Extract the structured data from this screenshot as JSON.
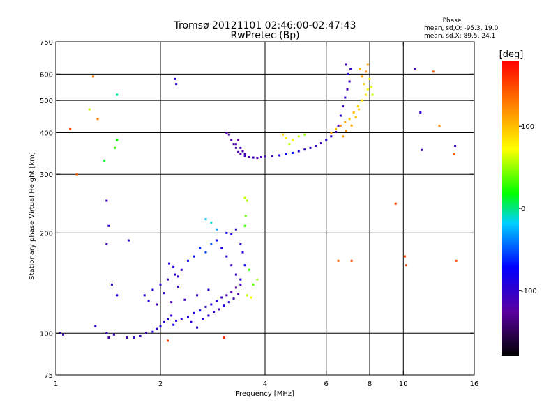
{
  "chart_data": {
    "type": "scatter",
    "title": "Tromsø 20121101 02:46:00-02:47:43",
    "subtitle": "RwPretec (Bp)",
    "xlabel": "Frequency [MHz]",
    "ylabel": "Stationary phase Virtual Height [km]",
    "x_scale": "log",
    "y_scale": "log",
    "xlim": [
      1,
      16
    ],
    "ylim": [
      75,
      750
    ],
    "x_ticks": [
      1,
      2,
      4,
      6,
      8,
      10,
      16
    ],
    "y_ticks": [
      75,
      100,
      200,
      300,
      400,
      500,
      600,
      750
    ],
    "x_gridlines": [
      2,
      4,
      6,
      8,
      10
    ],
    "y_gridlines": [
      100,
      200,
      300,
      400,
      500,
      600
    ],
    "grid": true,
    "stats": {
      "header": "Phase",
      "line_o": "mean, sd,O: -95.3, 19.0",
      "line_x": "mean, sd,X: 89.5, 24.1"
    },
    "colorbar": {
      "label": "[deg]",
      "range": [
        -180,
        180
      ],
      "ticks": [
        100,
        0,
        -100
      ],
      "tick_labels": [
        "100",
        "0",
        "-100"
      ]
    },
    "series": [
      {
        "points": [
          [
            1.03,
            100,
            -100
          ],
          [
            1.05,
            99,
            -105
          ],
          [
            1.3,
            105,
            -100
          ],
          [
            1.4,
            100,
            -110
          ],
          [
            1.42,
            97,
            -115
          ],
          [
            1.47,
            99,
            -105
          ],
          [
            1.6,
            97,
            -110
          ],
          [
            1.68,
            97,
            -95
          ],
          [
            1.75,
            98,
            -100
          ],
          [
            1.82,
            100,
            -110
          ],
          [
            1.9,
            101,
            -95
          ],
          [
            1.95,
            103,
            -100
          ],
          [
            2.0,
            105,
            -90
          ],
          [
            2.05,
            108,
            -100
          ],
          [
            2.1,
            110,
            -95
          ],
          [
            2.15,
            113,
            -105
          ],
          [
            2.18,
            106,
            -85
          ],
          [
            2.22,
            109,
            -95
          ],
          [
            2.3,
            110,
            -100
          ],
          [
            2.4,
            112,
            -90
          ],
          [
            2.5,
            115,
            -95
          ],
          [
            2.6,
            117,
            -85
          ],
          [
            2.7,
            120,
            -100
          ],
          [
            2.8,
            122,
            -90
          ],
          [
            2.9,
            125,
            -95
          ],
          [
            3.0,
            128,
            -110
          ],
          [
            3.1,
            130,
            -115
          ],
          [
            3.2,
            133,
            -120
          ],
          [
            3.3,
            137,
            -125
          ],
          [
            3.4,
            140,
            -110
          ],
          [
            2.45,
            108,
            -100
          ],
          [
            2.55,
            104,
            -95
          ],
          [
            2.65,
            110,
            -90
          ],
          [
            2.75,
            113,
            -100
          ],
          [
            2.85,
            116,
            -105
          ],
          [
            2.95,
            118,
            -110
          ],
          [
            3.05,
            121,
            -95
          ],
          [
            3.15,
            124,
            -100
          ],
          [
            3.25,
            127,
            -110
          ],
          [
            3.35,
            131,
            -115
          ],
          [
            1.8,
            130,
            -100
          ],
          [
            1.9,
            135,
            -95
          ],
          [
            2.0,
            140,
            -100
          ],
          [
            2.1,
            145,
            -105
          ],
          [
            2.2,
            150,
            -95
          ],
          [
            2.3,
            155,
            -100
          ],
          [
            1.85,
            125,
            -90
          ],
          [
            2.05,
            132,
            -95
          ],
          [
            2.25,
            138,
            -100
          ],
          [
            2.12,
            162,
            -90
          ],
          [
            2.18,
            158,
            -95
          ],
          [
            2.25,
            148,
            -100
          ],
          [
            1.95,
            122,
            -110
          ],
          [
            2.15,
            124,
            -115
          ],
          [
            2.35,
            126,
            -110
          ],
          [
            2.55,
            130,
            -105
          ],
          [
            2.75,
            135,
            -100
          ],
          [
            2.4,
            165,
            -80
          ],
          [
            2.5,
            170,
            -70
          ],
          [
            2.6,
            180,
            -60
          ],
          [
            2.7,
            175,
            -55
          ],
          [
            2.8,
            185,
            -50
          ],
          [
            2.9,
            190,
            -70
          ],
          [
            3.0,
            180,
            -90
          ],
          [
            3.1,
            170,
            -100
          ],
          [
            3.2,
            160,
            -110
          ],
          [
            3.3,
            150,
            -100
          ],
          [
            3.4,
            145,
            -90
          ],
          [
            3.5,
            160,
            -80
          ],
          [
            3.6,
            155,
            30
          ],
          [
            3.7,
            140,
            40
          ],
          [
            3.8,
            145,
            50
          ],
          [
            3.55,
            130,
            60
          ],
          [
            3.65,
            128,
            70
          ],
          [
            3.1,
            200,
            -80
          ],
          [
            3.2,
            198,
            -85
          ],
          [
            3.3,
            205,
            -90
          ],
          [
            3.4,
            185,
            -95
          ],
          [
            3.45,
            175,
            -100
          ],
          [
            2.7,
            220,
            -20
          ],
          [
            2.8,
            215,
            -10
          ],
          [
            2.9,
            205,
            -30
          ],
          [
            3.5,
            210,
            30
          ],
          [
            3.52,
            225,
            40
          ],
          [
            3.5,
            255,
            60
          ],
          [
            3.55,
            250,
            55
          ],
          [
            3.1,
            400,
            -120
          ],
          [
            3.15,
            395,
            -110
          ],
          [
            3.2,
            380,
            -115
          ],
          [
            3.25,
            370,
            -120
          ],
          [
            3.3,
            360,
            -110
          ],
          [
            3.35,
            350,
            -115
          ],
          [
            3.4,
            345,
            -120
          ],
          [
            3.5,
            340,
            -110
          ],
          [
            3.6,
            338,
            -115
          ],
          [
            3.7,
            337,
            -110
          ],
          [
            3.8,
            336,
            -120
          ],
          [
            3.9,
            338,
            -115
          ],
          [
            4.0,
            339,
            -110
          ],
          [
            4.2,
            340,
            -105
          ],
          [
            4.4,
            342,
            -90
          ],
          [
            4.6,
            345,
            -80
          ],
          [
            4.8,
            348,
            -70
          ],
          [
            5.0,
            352,
            -90
          ],
          [
            5.2,
            356,
            -100
          ],
          [
            5.4,
            360,
            -95
          ],
          [
            5.6,
            365,
            -100
          ],
          [
            5.8,
            372,
            -105
          ],
          [
            6.0,
            380,
            -95
          ],
          [
            6.2,
            390,
            -100
          ],
          [
            6.4,
            402,
            -105
          ],
          [
            6.5,
            420,
            -110
          ],
          [
            6.6,
            450,
            -100
          ],
          [
            6.7,
            480,
            -105
          ],
          [
            6.8,
            510,
            -100
          ],
          [
            6.9,
            540,
            -110
          ],
          [
            7.0,
            570,
            -105
          ],
          [
            6.95,
            600,
            -95
          ],
          [
            7.05,
            620,
            -100
          ],
          [
            6.85,
            640,
            -110
          ],
          [
            3.3,
            370,
            -120
          ],
          [
            3.35,
            380,
            -125
          ],
          [
            3.4,
            360,
            -110
          ],
          [
            3.45,
            352,
            -115
          ],
          [
            3.5,
            345,
            -110
          ],
          [
            4.7,
            370,
            60
          ],
          [
            4.8,
            380,
            70
          ],
          [
            5.0,
            390,
            60
          ],
          [
            5.2,
            395,
            50
          ],
          [
            4.6,
            385,
            80
          ],
          [
            4.5,
            395,
            90
          ],
          [
            6.2,
            400,
            110
          ],
          [
            6.4,
            410,
            100
          ],
          [
            6.6,
            420,
            120
          ],
          [
            6.8,
            430,
            110
          ],
          [
            7.0,
            440,
            95
          ],
          [
            7.2,
            460,
            100
          ],
          [
            7.4,
            480,
            90
          ],
          [
            7.6,
            500,
            85
          ],
          [
            7.8,
            520,
            80
          ],
          [
            7.9,
            540,
            75
          ],
          [
            7.7,
            560,
            95
          ],
          [
            7.6,
            590,
            110
          ],
          [
            7.8,
            610,
            120
          ],
          [
            7.9,
            640,
            110
          ],
          [
            8.0,
            580,
            70
          ],
          [
            8.1,
            550,
            65
          ],
          [
            8.15,
            520,
            60
          ],
          [
            7.5,
            620,
            105
          ],
          [
            6.7,
            390,
            115
          ],
          [
            6.85,
            405,
            120
          ],
          [
            7.1,
            420,
            110
          ],
          [
            7.3,
            445,
            100
          ],
          [
            7.45,
            470,
            95
          ],
          [
            2.2,
            580,
            -90
          ],
          [
            2.22,
            560,
            -95
          ],
          [
            1.5,
            520,
            0
          ],
          [
            1.5,
            380,
            20
          ],
          [
            1.48,
            360,
            30
          ],
          [
            1.38,
            330,
            10
          ],
          [
            1.25,
            470,
            60
          ],
          [
            1.28,
            590,
            130
          ],
          [
            1.32,
            440,
            130
          ],
          [
            1.15,
            300,
            140
          ],
          [
            1.4,
            250,
            -110
          ],
          [
            1.42,
            210,
            -100
          ],
          [
            1.4,
            185,
            -110
          ],
          [
            1.45,
            140,
            -100
          ],
          [
            1.5,
            130,
            -90
          ],
          [
            1.62,
            190,
            -100
          ],
          [
            1.1,
            410,
            150
          ],
          [
            10.8,
            620,
            -110
          ],
          [
            11.2,
            460,
            -100
          ],
          [
            11.3,
            355,
            -110
          ],
          [
            12.2,
            610,
            140
          ],
          [
            12.7,
            420,
            130
          ],
          [
            14.1,
            365,
            -100
          ],
          [
            14.0,
            345,
            140
          ],
          [
            14.2,
            165,
            150
          ],
          [
            10.1,
            170,
            150
          ],
          [
            10.2,
            160,
            150
          ],
          [
            7.1,
            165,
            150
          ],
          [
            6.5,
            165,
            140
          ],
          [
            9.5,
            245,
            150
          ],
          [
            2.1,
            95,
            150
          ],
          [
            3.05,
            97,
            160
          ]
        ]
      }
    ]
  }
}
